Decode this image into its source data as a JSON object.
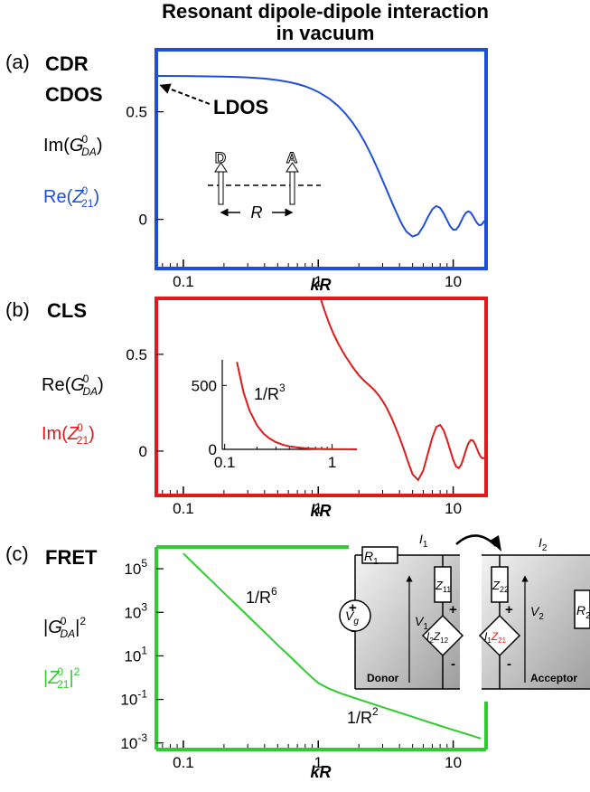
{
  "title_line1": "Resonant dipole-dipole interaction",
  "title_line2": "in vacuum",
  "colors": {
    "a": "#1e4fd8",
    "b": "#e01a1a",
    "c": "#2ecc2e",
    "text": "#000000"
  },
  "panels": {
    "a": {
      "tag": "(a)",
      "labels": [
        "CDR",
        "CDOS"
      ],
      "annotation": "LDOS",
      "ylabels": [
        {
          "pre": "Im(",
          "sym": "G",
          "sup": "0",
          "sub": "DA",
          "post": ")",
          "color": "black"
        },
        {
          "pre": "Re(",
          "sym": "Z",
          "sup": "0",
          "sub": "21",
          "post": ")",
          "color": "blue"
        }
      ],
      "inset": {
        "d_label": "D",
        "a_label": "A",
        "r_label": "R"
      },
      "xlabel": "kR"
    },
    "b": {
      "tag": "(b)",
      "labels": [
        "CLS"
      ],
      "ylabels": [
        {
          "pre": "Re(",
          "sym": "G",
          "sup": "0",
          "sub": "DA",
          "post": ")",
          "color": "black"
        },
        {
          "pre": "Im(",
          "sym": "Z",
          "sup": "0",
          "sub": "21",
          "post": ")",
          "color": "red"
        }
      ],
      "inset_annotation": {
        "text": "1/R",
        "sup": "3"
      },
      "xlabel": "kR"
    },
    "c": {
      "tag": "(c)",
      "labels": [
        "FRET"
      ],
      "ylabels": [
        {
          "pre": "|",
          "sym": "G",
          "sup": "0",
          "sub": "DA",
          "post": "|",
          "sup2": "2",
          "color": "black"
        },
        {
          "pre": "|",
          "sym": "Z",
          "sup": "0",
          "sub": "21",
          "post": "|",
          "sup2": "2",
          "color": "green"
        }
      ],
      "annotations": [
        {
          "text": "1/R",
          "sup": "6"
        },
        {
          "text": "1/R",
          "sup": "2"
        }
      ],
      "circuit": {
        "donor": "Donor",
        "acceptor": "Acceptor",
        "R1": "R",
        "R1sub": "1",
        "R2": "R",
        "R2sub": "2",
        "I1": "I",
        "I1sub": "1",
        "I2": "I",
        "I2sub": "2",
        "V1": "V",
        "V1sub": "1",
        "V2": "V",
        "V2sub": "2",
        "Z11": "Z",
        "Z11sub": "11",
        "Z22": "Z",
        "Z22sub": "22",
        "Vg": "V",
        "Vgsub": "g",
        "dep1": "I",
        "dep1a": "2",
        "dep1b": "Z",
        "dep1c": "12",
        "dep2": "I",
        "dep2a": "1",
        "dep2b": "Z",
        "dep2c": "21"
      },
      "xlabel": "kR"
    }
  },
  "chart_data": [
    {
      "type": "line",
      "panel": "a",
      "xscale": "log",
      "xlim": [
        0.065,
        17
      ],
      "ylim": [
        -0.22,
        0.78
      ],
      "xticks": [
        0.1,
        1,
        10
      ],
      "xtick_labels": [
        "0.1",
        "1",
        "10"
      ],
      "yticks": [
        0,
        0.5
      ],
      "ytick_labels": [
        "0",
        "0.5"
      ],
      "xlabel": "kR",
      "series": [
        {
          "color": "#1e4fd8",
          "x": [
            0.065,
            0.1,
            0.2,
            0.3,
            0.4,
            0.5,
            0.6,
            0.7,
            0.8,
            0.9,
            1.0,
            1.2,
            1.4,
            1.6,
            1.8,
            2.0,
            2.2,
            2.5,
            2.8,
            3.0,
            3.3,
            3.6,
            4.0,
            4.2,
            4.5,
            5.0,
            5.5,
            6.0,
            6.5,
            7.0,
            7.5,
            8.0,
            8.5,
            9.0,
            9.5,
            10.0,
            10.5,
            11.0,
            11.5,
            12.0,
            12.5,
            13.0,
            13.5,
            14.0,
            14.5,
            15.0,
            15.5,
            16.0,
            16.5,
            17.0
          ],
          "y": [
            0.6667,
            0.6661,
            0.6637,
            0.6597,
            0.6542,
            0.6473,
            0.6389,
            0.6291,
            0.6181,
            0.6058,
            0.5923,
            0.562,
            0.5276,
            0.4898,
            0.4491,
            0.4061,
            0.3615,
            0.2928,
            0.2246,
            0.181,
            0.1195,
            0.0639,
            0.0,
            -0.0262,
            -0.0568,
            -0.0797,
            -0.0694,
            -0.0328,
            0.012,
            0.0473,
            0.062,
            0.0537,
            0.0284,
            -0.0041,
            -0.0325,
            -0.0483,
            -0.0472,
            -0.0312,
            -0.0066,
            0.0168,
            0.0324,
            0.0373,
            0.0307,
            0.0162,
            -0.0009,
            -0.0164,
            -0.0259,
            -0.0269,
            -0.0195,
            -0.0065
          ]
        }
      ]
    },
    {
      "type": "line",
      "panel": "b",
      "xscale": "log",
      "xlim": [
        0.065,
        17
      ],
      "ylim": [
        -0.22,
        0.78
      ],
      "xticks": [
        0.1,
        1,
        10
      ],
      "xtick_labels": [
        "0.1",
        "1",
        "10"
      ],
      "yticks": [
        0,
        0.5
      ],
      "ytick_labels": [
        "0",
        "0.5"
      ],
      "xlabel": "kR",
      "series": [
        {
          "color": "#e01a1a",
          "x": [
            1.05,
            1.1,
            1.2,
            1.3,
            1.4,
            1.5,
            1.6,
            1.7,
            1.8,
            1.9,
            2.0,
            2.2,
            2.4,
            2.6,
            2.8,
            3.0,
            3.2,
            3.5,
            3.8,
            4.0,
            4.3,
            4.6,
            5.0,
            5.5,
            6.0,
            6.5,
            7.0,
            7.5,
            8.0,
            8.5,
            9.0,
            9.5,
            10.0,
            10.5,
            11.0,
            11.5,
            12.0,
            12.5,
            13.0,
            13.5,
            14.0,
            14.5,
            15.0,
            15.5,
            16.0,
            16.5,
            17.0
          ],
          "y": [
            0.78,
            0.737,
            0.662,
            0.604,
            0.558,
            0.52,
            0.488,
            0.46,
            0.434,
            0.412,
            0.392,
            0.362,
            0.339,
            0.316,
            0.289,
            0.259,
            0.226,
            0.17,
            0.11,
            0.07,
            0.01,
            -0.05,
            -0.12,
            -0.15,
            -0.1,
            -0.01,
            0.07,
            0.125,
            0.135,
            0.108,
            0.058,
            0.005,
            -0.045,
            -0.08,
            -0.088,
            -0.068,
            -0.03,
            0.012,
            0.042,
            0.057,
            0.055,
            0.037,
            0.012,
            -0.012,
            -0.03,
            -0.038,
            -0.034
          ]
        }
      ],
      "inset": {
        "xscale": "log",
        "xlim": [
          0.095,
          1.7
        ],
        "ylim": [
          0,
          700
        ],
        "xticks": [
          0.1,
          1
        ],
        "xtick_labels": [
          "0.1",
          "1"
        ],
        "yticks": [
          0,
          500
        ],
        "ytick_labels": [
          "0",
          "500"
        ],
        "series": [
          {
            "color": "#e01a1a",
            "x": [
              0.13,
              0.15,
              0.17,
              0.2,
              0.23,
              0.26,
              0.3,
              0.35,
              0.4,
              0.5,
              0.6,
              0.7,
              0.8,
              0.9,
              1.0,
              1.2,
              1.4,
              1.7
            ],
            "y": [
              683,
              445,
              305,
              187,
              123,
              86,
              56,
              35,
              23,
              12,
              7,
              4.4,
              3,
              2.1,
              1.5,
              0.9,
              0.5,
              0.3
            ]
          }
        ]
      }
    },
    {
      "type": "line",
      "panel": "c",
      "xscale": "log",
      "yscale": "log",
      "xlim": [
        0.065,
        17
      ],
      "ylim": [
        0.0005,
        1000000
      ],
      "xticks": [
        0.1,
        1,
        10
      ],
      "xtick_labels": [
        "0.1",
        "1",
        "10"
      ],
      "yticks": [
        0.001,
        0.1,
        10,
        1000,
        100000
      ],
      "ytick_labels": [
        "10^-3",
        "10^-1",
        "10^1",
        "10^3",
        "10^5"
      ],
      "xlabel": "kR",
      "series": [
        {
          "color": "#2ecc2e",
          "x": [
            0.1,
            0.15,
            0.2,
            0.3,
            0.4,
            0.5,
            0.6,
            0.7,
            0.8,
            0.9,
            1.0,
            1.2,
            1.5,
            2.0,
            3.0,
            5.0,
            7.0,
            10.0,
            13.0,
            16.0
          ],
          "y": [
            500000,
            44000,
            7800,
            690,
            123,
            32,
            11,
            4.4,
            2.0,
            1.0,
            0.57,
            0.31,
            0.18,
            0.1,
            0.044,
            0.016,
            0.008,
            0.004,
            0.0024,
            0.0016
          ]
        }
      ]
    }
  ]
}
